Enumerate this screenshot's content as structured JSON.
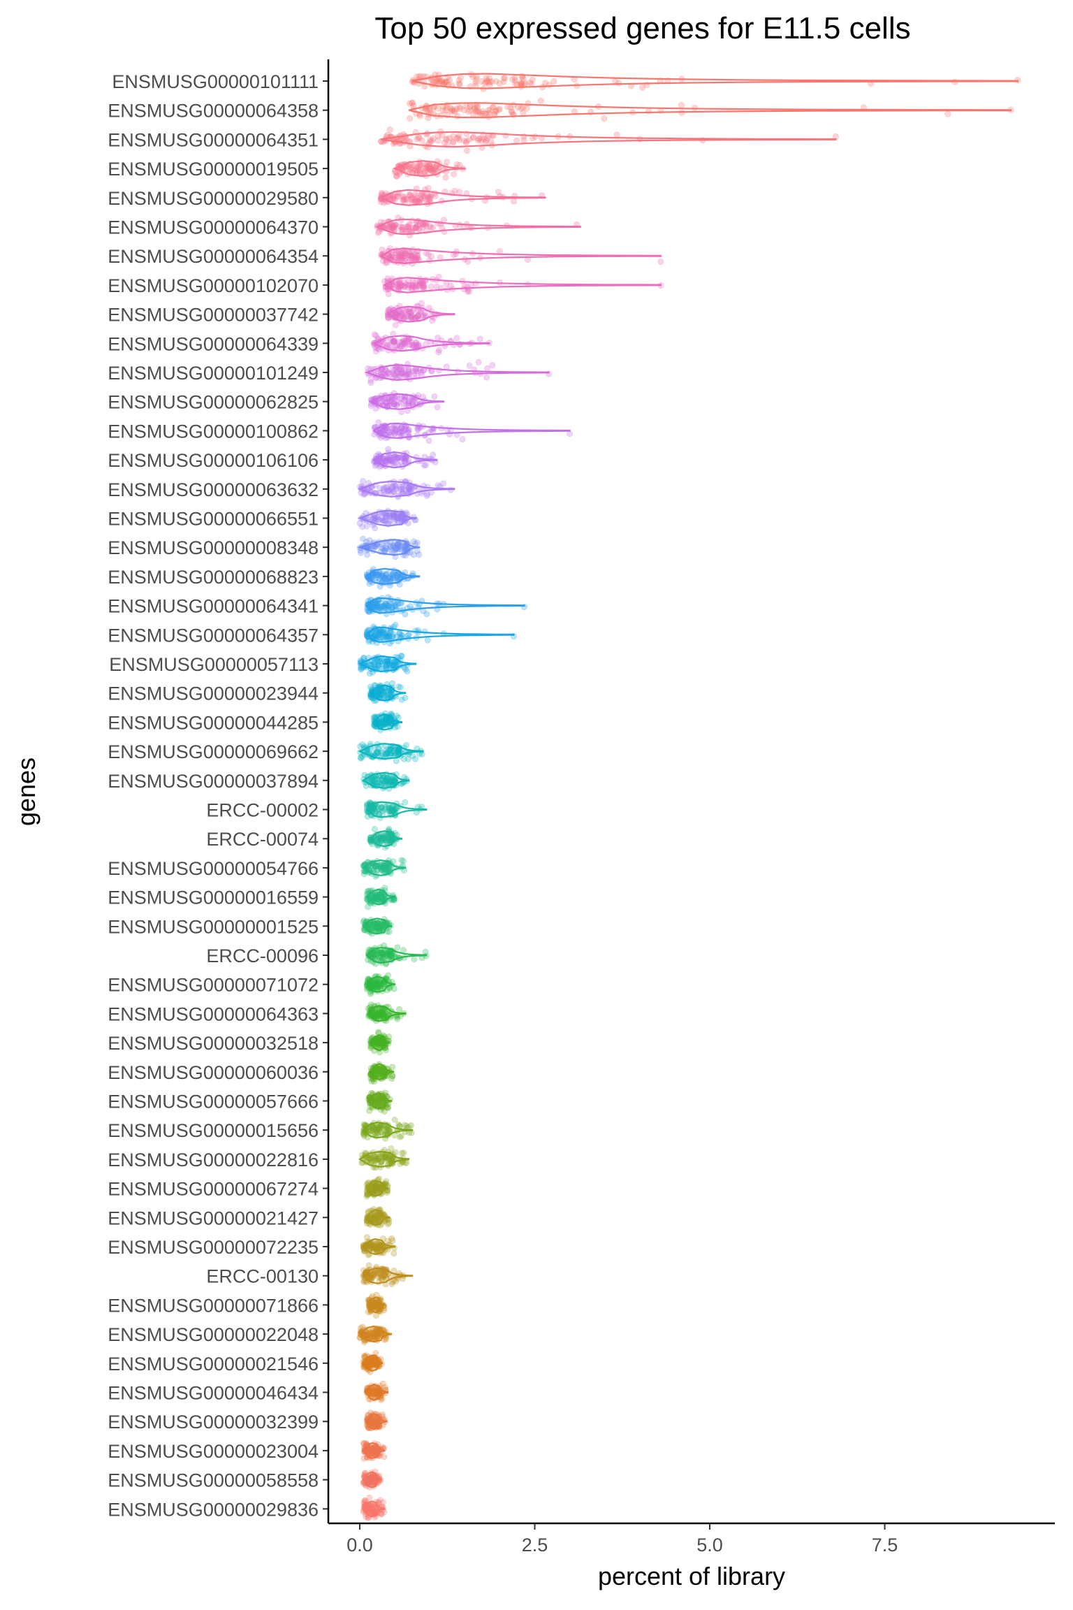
{
  "chart_data": {
    "type": "scatter",
    "subtype": "jittered points with violin outlines",
    "title": "Top 50 expressed genes for E11.5 cells",
    "xlabel": "percent of library",
    "ylabel": "genes",
    "xlim": [
      -0.7,
      9.8
    ],
    "x_ticks": [
      0,
      2.5,
      5,
      7.5
    ],
    "x_tick_labels": [
      "0.0",
      "2.5",
      "5.0",
      "7.5"
    ],
    "grid": false,
    "legend": "none",
    "point_alpha": 0.3,
    "genes": [
      {
        "label": "ENSMUSG00000101111",
        "color": "#F8766D",
        "min": 0.75,
        "q1": 1.2,
        "median": 1.7,
        "q3": 2.3,
        "max": 9.4,
        "outliers": [
          3.7,
          4.1,
          4.4,
          4.6,
          7.3,
          8.5,
          9.4
        ]
      },
      {
        "label": "ENSMUSG00000064358",
        "color": "#F8766D",
        "min": 0.7,
        "q1": 1.1,
        "median": 1.6,
        "q3": 2.2,
        "max": 9.3,
        "outliers": [
          3.3,
          3.9,
          4.3,
          4.6,
          7.2,
          8.4,
          9.3
        ]
      },
      {
        "label": "ENSMUSG00000064351",
        "color": "#F9747D",
        "min": 0.3,
        "q1": 0.9,
        "median": 1.3,
        "q3": 1.8,
        "max": 6.8,
        "outliers": [
          2.6,
          3.0,
          4.0,
          4.9,
          6.8
        ]
      },
      {
        "label": "ENSMUSG00000019505",
        "color": "#F8738B",
        "min": 0.5,
        "q1": 0.7,
        "median": 0.9,
        "q3": 1.1,
        "max": 1.5,
        "outliers": []
      },
      {
        "label": "ENSMUSG00000029580",
        "color": "#F67199",
        "min": 0.3,
        "q1": 0.5,
        "median": 0.7,
        "q3": 1.0,
        "max": 2.65,
        "outliers": [
          1.6,
          2.2,
          2.6
        ]
      },
      {
        "label": "ENSMUSG00000064370",
        "color": "#F36FA6",
        "min": 0.25,
        "q1": 0.45,
        "median": 0.65,
        "q3": 0.9,
        "max": 3.15,
        "outliers": [
          1.6,
          2.1,
          3.1
        ]
      },
      {
        "label": "ENSMUSG00000064354",
        "color": "#EF6EB3",
        "min": 0.3,
        "q1": 0.45,
        "median": 0.6,
        "q3": 0.85,
        "max": 4.3,
        "outliers": [
          1.5,
          2.0,
          2.4,
          4.3
        ]
      },
      {
        "label": "ENSMUSG00000102070",
        "color": "#EB6DBF",
        "min": 0.35,
        "q1": 0.5,
        "median": 0.65,
        "q3": 0.9,
        "max": 4.3,
        "outliers": [
          1.5,
          2.0,
          2.4,
          4.3
        ]
      },
      {
        "label": "ENSMUSG00000037742",
        "color": "#E56CCA",
        "min": 0.4,
        "q1": 0.55,
        "median": 0.7,
        "q3": 0.9,
        "max": 1.35,
        "outliers": []
      },
      {
        "label": "ENSMUSG00000064339",
        "color": "#DE6CD4",
        "min": 0.2,
        "q1": 0.4,
        "median": 0.6,
        "q3": 0.8,
        "max": 1.85,
        "outliers": [
          1.3,
          1.85
        ]
      },
      {
        "label": "ENSMUSG00000101249",
        "color": "#D56CDD",
        "min": 0.1,
        "q1": 0.35,
        "median": 0.55,
        "q3": 0.8,
        "max": 2.7,
        "outliers": [
          1.4,
          2.7
        ]
      },
      {
        "label": "ENSMUSG00000062825",
        "color": "#CC6EE5",
        "min": 0.15,
        "q1": 0.35,
        "median": 0.55,
        "q3": 0.75,
        "max": 1.2,
        "outliers": []
      },
      {
        "label": "ENSMUSG00000100862",
        "color": "#C171EB",
        "min": 0.2,
        "q1": 0.35,
        "median": 0.5,
        "q3": 0.7,
        "max": 3.0,
        "outliers": [
          1.3,
          3.0
        ]
      },
      {
        "label": "ENSMUSG00000106106",
        "color": "#B575F0",
        "min": 0.2,
        "q1": 0.35,
        "median": 0.5,
        "q3": 0.65,
        "max": 1.1,
        "outliers": []
      },
      {
        "label": "ENSMUSG00000063632",
        "color": "#A87AF4",
        "min": 0.0,
        "q1": 0.25,
        "median": 0.45,
        "q3": 0.7,
        "max": 1.35,
        "outliers": []
      },
      {
        "label": "ENSMUSG00000066551",
        "color": "#9A7FF6",
        "min": 0.0,
        "q1": 0.25,
        "median": 0.4,
        "q3": 0.6,
        "max": 0.8,
        "outliers": []
      },
      {
        "label": "ENSMUSG00000008348",
        "color": "#6A8CF5",
        "min": 0.0,
        "q1": 0.3,
        "median": 0.5,
        "q3": 0.65,
        "max": 0.85,
        "outliers": []
      },
      {
        "label": "ENSMUSG00000068823",
        "color": "#3B98F1",
        "min": 0.1,
        "q1": 0.2,
        "median": 0.35,
        "q3": 0.55,
        "max": 0.85,
        "outliers": []
      },
      {
        "label": "ENSMUSG00000064341",
        "color": "#2A9FEC",
        "min": 0.1,
        "q1": 0.2,
        "median": 0.3,
        "q3": 0.5,
        "max": 2.35,
        "outliers": [
          1.2,
          2.35
        ]
      },
      {
        "label": "ENSMUSG00000064357",
        "color": "#1AA5E6",
        "min": 0.1,
        "q1": 0.2,
        "median": 0.3,
        "q3": 0.45,
        "max": 2.2,
        "outliers": [
          1.2,
          2.2
        ]
      },
      {
        "label": "ENSMUSG00000057113",
        "color": "#10AADE",
        "min": 0.0,
        "q1": 0.2,
        "median": 0.3,
        "q3": 0.5,
        "max": 0.8,
        "outliers": []
      },
      {
        "label": "ENSMUSG00000023944",
        "color": "#0CAFD5",
        "min": 0.15,
        "q1": 0.25,
        "median": 0.35,
        "q3": 0.45,
        "max": 0.65,
        "outliers": []
      },
      {
        "label": "ENSMUSG00000044285",
        "color": "#0AB3CB",
        "min": 0.2,
        "q1": 0.28,
        "median": 0.35,
        "q3": 0.45,
        "max": 0.6,
        "outliers": []
      },
      {
        "label": "ENSMUSG00000069662",
        "color": "#0BB6C0",
        "min": 0.0,
        "q1": 0.2,
        "median": 0.35,
        "q3": 0.55,
        "max": 0.9,
        "outliers": []
      },
      {
        "label": "ENSMUSG00000037894",
        "color": "#10B8B3",
        "min": 0.05,
        "q1": 0.2,
        "median": 0.35,
        "q3": 0.5,
        "max": 0.7,
        "outliers": []
      },
      {
        "label": "ERCC-00002",
        "color": "#16BAA6",
        "min": 0.1,
        "q1": 0.2,
        "median": 0.3,
        "q3": 0.5,
        "max": 0.95,
        "outliers": []
      },
      {
        "label": "ERCC-00074",
        "color": "#1DBB98",
        "min": 0.15,
        "q1": 0.25,
        "median": 0.35,
        "q3": 0.45,
        "max": 0.6,
        "outliers": []
      },
      {
        "label": "ENSMUSG00000054766",
        "color": "#22BC89",
        "min": 0.05,
        "q1": 0.18,
        "median": 0.3,
        "q3": 0.42,
        "max": 0.65,
        "outliers": []
      },
      {
        "label": "ENSMUSG00000016559",
        "color": "#25BC79",
        "min": 0.1,
        "q1": 0.2,
        "median": 0.27,
        "q3": 0.35,
        "max": 0.5,
        "outliers": []
      },
      {
        "label": "ENSMUSG00000001525",
        "color": "#27BC68",
        "min": 0.05,
        "q1": 0.15,
        "median": 0.25,
        "q3": 0.35,
        "max": 0.45,
        "outliers": []
      },
      {
        "label": "ERCC-00096",
        "color": "#28BB55",
        "min": 0.1,
        "q1": 0.2,
        "median": 0.3,
        "q3": 0.45,
        "max": 0.95,
        "outliers": []
      },
      {
        "label": "ENSMUSG00000071072",
        "color": "#2CBA3F",
        "min": 0.1,
        "q1": 0.18,
        "median": 0.25,
        "q3": 0.35,
        "max": 0.5,
        "outliers": []
      },
      {
        "label": "ENSMUSG00000064363",
        "color": "#39B72C",
        "min": 0.12,
        "q1": 0.2,
        "median": 0.27,
        "q3": 0.38,
        "max": 0.65,
        "outliers": []
      },
      {
        "label": "ENSMUSG00000032518",
        "color": "#47B426",
        "min": 0.15,
        "q1": 0.22,
        "median": 0.28,
        "q3": 0.33,
        "max": 0.42,
        "outliers": []
      },
      {
        "label": "ENSMUSG00000060036",
        "color": "#57B11F",
        "min": 0.15,
        "q1": 0.22,
        "median": 0.28,
        "q3": 0.35,
        "max": 0.48,
        "outliers": []
      },
      {
        "label": "ENSMUSG00000057666",
        "color": "#68AD1F",
        "min": 0.12,
        "q1": 0.2,
        "median": 0.27,
        "q3": 0.35,
        "max": 0.45,
        "outliers": []
      },
      {
        "label": "ENSMUSG00000015656",
        "color": "#7AA91F",
        "min": 0.05,
        "q1": 0.15,
        "median": 0.25,
        "q3": 0.4,
        "max": 0.75,
        "outliers": []
      },
      {
        "label": "ENSMUSG00000022816",
        "color": "#8BA41F",
        "min": 0.0,
        "q1": 0.15,
        "median": 0.3,
        "q3": 0.45,
        "max": 0.7,
        "outliers": []
      },
      {
        "label": "ENSMUSG00000067274",
        "color": "#9A9F1F",
        "min": 0.1,
        "q1": 0.17,
        "median": 0.22,
        "q3": 0.3,
        "max": 0.4,
        "outliers": []
      },
      {
        "label": "ENSMUSG00000021427",
        "color": "#A89A1F",
        "min": 0.1,
        "q1": 0.17,
        "median": 0.22,
        "q3": 0.3,
        "max": 0.42,
        "outliers": []
      },
      {
        "label": "ENSMUSG00000072235",
        "color": "#B4951F",
        "min": 0.05,
        "q1": 0.15,
        "median": 0.22,
        "q3": 0.32,
        "max": 0.5,
        "outliers": []
      },
      {
        "label": "ERCC-00130",
        "color": "#BF8F1F",
        "min": 0.05,
        "q1": 0.15,
        "median": 0.25,
        "q3": 0.38,
        "max": 0.75,
        "outliers": []
      },
      {
        "label": "ENSMUSG00000071866",
        "color": "#C98A1F",
        "min": 0.12,
        "q1": 0.18,
        "median": 0.23,
        "q3": 0.28,
        "max": 0.35,
        "outliers": []
      },
      {
        "label": "ENSMUSG00000022048",
        "color": "#D2851F",
        "min": 0.0,
        "q1": 0.1,
        "median": 0.2,
        "q3": 0.3,
        "max": 0.45,
        "outliers": []
      },
      {
        "label": "ENSMUSG00000021546",
        "color": "#DA7F1F",
        "min": 0.05,
        "q1": 0.12,
        "median": 0.18,
        "q3": 0.25,
        "max": 0.32,
        "outliers": []
      },
      {
        "label": "ENSMUSG00000046434",
        "color": "#E17A2B",
        "min": 0.1,
        "q1": 0.15,
        "median": 0.2,
        "q3": 0.28,
        "max": 0.4,
        "outliers": []
      },
      {
        "label": "ENSMUSG00000032399",
        "color": "#E8773F",
        "min": 0.1,
        "q1": 0.15,
        "median": 0.2,
        "q3": 0.27,
        "max": 0.38,
        "outliers": []
      },
      {
        "label": "ENSMUSG00000023004",
        "color": "#EE7550",
        "min": 0.05,
        "q1": 0.12,
        "median": 0.18,
        "q3": 0.25,
        "max": 0.35,
        "outliers": []
      },
      {
        "label": "ENSMUSG00000058558",
        "color": "#F37560",
        "min": 0.05,
        "q1": 0.12,
        "median": 0.17,
        "q3": 0.23,
        "max": 0.3,
        "outliers": []
      },
      {
        "label": "ENSMUSG00000029836",
        "color": "#F8766D",
        "min": 0.05,
        "q1": 0.12,
        "median": 0.17,
        "q3": 0.23,
        "max": 0.35,
        "outliers": []
      }
    ]
  }
}
